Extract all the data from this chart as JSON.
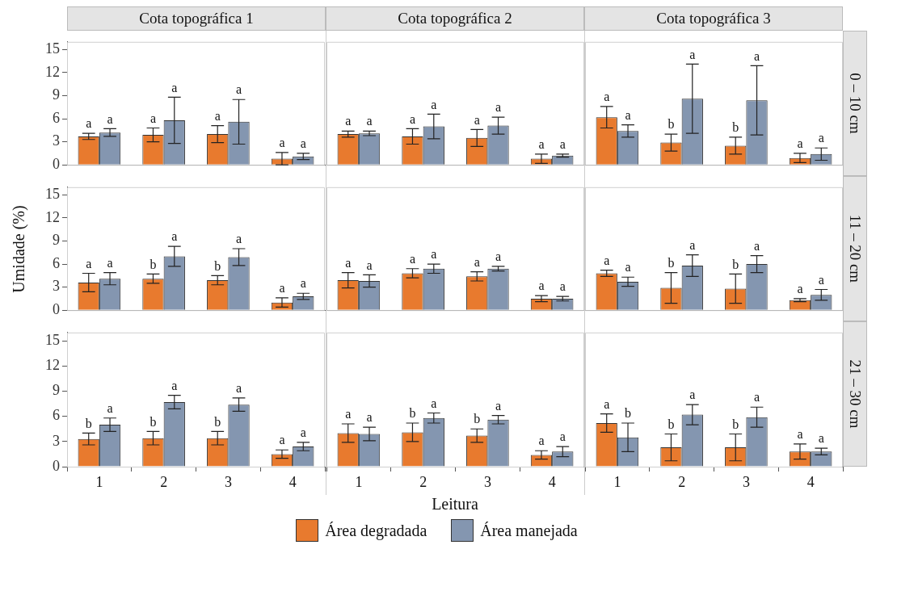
{
  "chart_data": [
    {
      "type": "bar",
      "title": "Cota topográfica 1",
      "categories": [
        "1",
        "2",
        "3",
        "4"
      ],
      "ylim": [
        0,
        16
      ],
      "yticks": [
        0,
        3,
        6,
        9,
        12,
        15
      ],
      "tick_labels": "y",
      "series": [
        {
          "color": "#e87a2e",
          "values": [
            3.7,
            3.9,
            4.0,
            0.8
          ],
          "errors": [
            0.4,
            0.9,
            1.1,
            0.8
          ],
          "value_labels": [
            "a",
            "a",
            "a",
            "a"
          ]
        },
        {
          "color": "#8496b0",
          "values": [
            4.2,
            5.8,
            5.6,
            1.1
          ],
          "errors": [
            0.5,
            3.0,
            2.9,
            0.4
          ],
          "value_labels": [
            "a",
            "a",
            "a",
            "a"
          ]
        }
      ]
    },
    {
      "type": "bar",
      "title": "Cota topográfica 2",
      "categories": [
        "1",
        "2",
        "3",
        "4"
      ],
      "ylim": [
        0,
        16
      ],
      "yticks": [
        0,
        3,
        6,
        9,
        12,
        15
      ],
      "tick_labels": false,
      "series": [
        {
          "color": "#e87a2e",
          "values": [
            4.0,
            3.7,
            3.5,
            0.8
          ],
          "errors": [
            0.4,
            1.0,
            1.1,
            0.6
          ],
          "value_labels": [
            "a",
            "a",
            "a",
            "a"
          ]
        },
        {
          "color": "#8496b0",
          "values": [
            4.1,
            5.0,
            5.1,
            1.2
          ],
          "errors": [
            0.3,
            1.6,
            1.1,
            0.2
          ],
          "value_labels": [
            "a",
            "a",
            "a",
            "a"
          ]
        }
      ]
    },
    {
      "type": "bar",
      "title": "Cota topográfica 3",
      "y2label": "0 – 10 cm",
      "categories": [
        "1",
        "2",
        "3",
        "4"
      ],
      "ylim": [
        0,
        16
      ],
      "yticks": [
        0,
        3,
        6,
        9,
        12,
        15
      ],
      "tick_labels": false,
      "series": [
        {
          "color": "#e87a2e",
          "values": [
            6.2,
            2.9,
            2.5,
            0.9
          ],
          "errors": [
            1.4,
            1.1,
            1.1,
            0.6
          ],
          "value_labels": [
            "a",
            "b",
            "b",
            "a"
          ]
        },
        {
          "color": "#8496b0",
          "values": [
            4.4,
            8.6,
            8.4,
            1.4
          ],
          "errors": [
            0.8,
            4.5,
            4.5,
            0.8
          ],
          "value_labels": [
            "a",
            "a",
            "a",
            "a"
          ]
        }
      ]
    },
    {
      "type": "bar",
      "ylabel": "Umidade (%)",
      "categories": [
        "1",
        "2",
        "3",
        "4"
      ],
      "ylim": [
        0,
        16
      ],
      "yticks": [
        0,
        3,
        6,
        9,
        12,
        15
      ],
      "tick_labels": "y",
      "series": [
        {
          "color": "#e87a2e",
          "values": [
            3.6,
            4.1,
            3.9,
            1.0
          ],
          "errors": [
            1.2,
            0.6,
            0.6,
            0.6
          ],
          "value_labels": [
            "a",
            "b",
            "b",
            "a"
          ]
        },
        {
          "color": "#8496b0",
          "values": [
            4.1,
            7.0,
            6.9,
            1.8
          ],
          "errors": [
            0.8,
            1.3,
            1.1,
            0.4
          ],
          "value_labels": [
            "a",
            "a",
            "a",
            "a"
          ]
        }
      ]
    },
    {
      "type": "bar",
      "categories": [
        "1",
        "2",
        "3",
        "4"
      ],
      "ylim": [
        0,
        16
      ],
      "yticks": [
        0,
        3,
        6,
        9,
        12,
        15
      ],
      "tick_labels": false,
      "series": [
        {
          "color": "#e87a2e",
          "values": [
            3.9,
            4.8,
            4.4,
            1.5
          ],
          "errors": [
            1.0,
            0.6,
            0.6,
            0.4
          ],
          "value_labels": [
            "a",
            "a",
            "a",
            "a"
          ]
        },
        {
          "color": "#8496b0",
          "values": [
            3.8,
            5.4,
            5.4,
            1.5
          ],
          "errors": [
            0.8,
            0.6,
            0.3,
            0.3
          ],
          "value_labels": [
            "a",
            "a",
            "a",
            "a"
          ]
        }
      ]
    },
    {
      "type": "bar",
      "y2label": "11 – 20 cm",
      "categories": [
        "1",
        "2",
        "3",
        "4"
      ],
      "ylim": [
        0,
        16
      ],
      "yticks": [
        0,
        3,
        6,
        9,
        12,
        15
      ],
      "tick_labels": false,
      "series": [
        {
          "color": "#e87a2e",
          "values": [
            4.8,
            2.9,
            2.8,
            1.3
          ],
          "errors": [
            0.4,
            2.0,
            1.9,
            0.2
          ],
          "value_labels": [
            "a",
            "b",
            "b",
            "a"
          ]
        },
        {
          "color": "#8496b0",
          "values": [
            3.7,
            5.8,
            6.0,
            2.0
          ],
          "errors": [
            0.6,
            1.4,
            1.1,
            0.7
          ],
          "value_labels": [
            "a",
            "a",
            "a",
            "a"
          ]
        }
      ]
    },
    {
      "type": "bar",
      "categories": [
        "1",
        "2",
        "3",
        "4"
      ],
      "ylim": [
        0,
        16
      ],
      "yticks": [
        0,
        3,
        6,
        9,
        12,
        15
      ],
      "series": [
        {
          "color": "#e87a2e",
          "values": [
            3.3,
            3.4,
            3.4,
            1.5
          ],
          "errors": [
            0.7,
            0.8,
            0.8,
            0.5
          ],
          "value_labels": [
            "b",
            "b",
            "b",
            "a"
          ]
        },
        {
          "color": "#8496b0",
          "values": [
            5.0,
            7.7,
            7.4,
            2.4
          ],
          "errors": [
            0.8,
            0.8,
            0.8,
            0.5
          ],
          "value_labels": [
            "a",
            "a",
            "a",
            "a"
          ]
        }
      ]
    },
    {
      "type": "bar",
      "xlabel": "Leitura",
      "legend": "bottom",
      "categories": [
        "1",
        "2",
        "3",
        "4"
      ],
      "ylim": [
        0,
        16
      ],
      "yticks": [
        0,
        3,
        6,
        9,
        12,
        15
      ],
      "tick_labels": "x",
      "series": [
        {
          "name": "Área degradada",
          "color": "#e87a2e",
          "values": [
            4.0,
            4.1,
            3.7,
            1.4
          ],
          "errors": [
            1.1,
            1.1,
            0.8,
            0.5
          ],
          "value_labels": [
            "a",
            "b",
            "b",
            "a"
          ]
        },
        {
          "name": "Área manejada",
          "color": "#8496b0",
          "values": [
            3.9,
            5.8,
            5.6,
            1.8
          ],
          "errors": [
            0.8,
            0.6,
            0.5,
            0.6
          ],
          "value_labels": [
            "a",
            "a",
            "a",
            "a"
          ]
        }
      ]
    },
    {
      "type": "bar",
      "y2label": "21 – 30 cm",
      "categories": [
        "1",
        "2",
        "3",
        "4"
      ],
      "ylim": [
        0,
        16
      ],
      "yticks": [
        0,
        3,
        6,
        9,
        12,
        15
      ],
      "tick_labels": "x",
      "series": [
        {
          "color": "#e87a2e",
          "values": [
            5.2,
            2.3,
            2.3,
            1.8
          ],
          "errors": [
            1.1,
            1.6,
            1.6,
            0.9
          ],
          "value_labels": [
            "a",
            "b",
            "b",
            "a"
          ]
        },
        {
          "color": "#8496b0",
          "values": [
            3.5,
            6.2,
            5.9,
            1.8
          ],
          "errors": [
            1.7,
            1.2,
            1.2,
            0.4
          ],
          "value_labels": [
            "b",
            "a",
            "a",
            "a"
          ]
        }
      ]
    }
  ]
}
